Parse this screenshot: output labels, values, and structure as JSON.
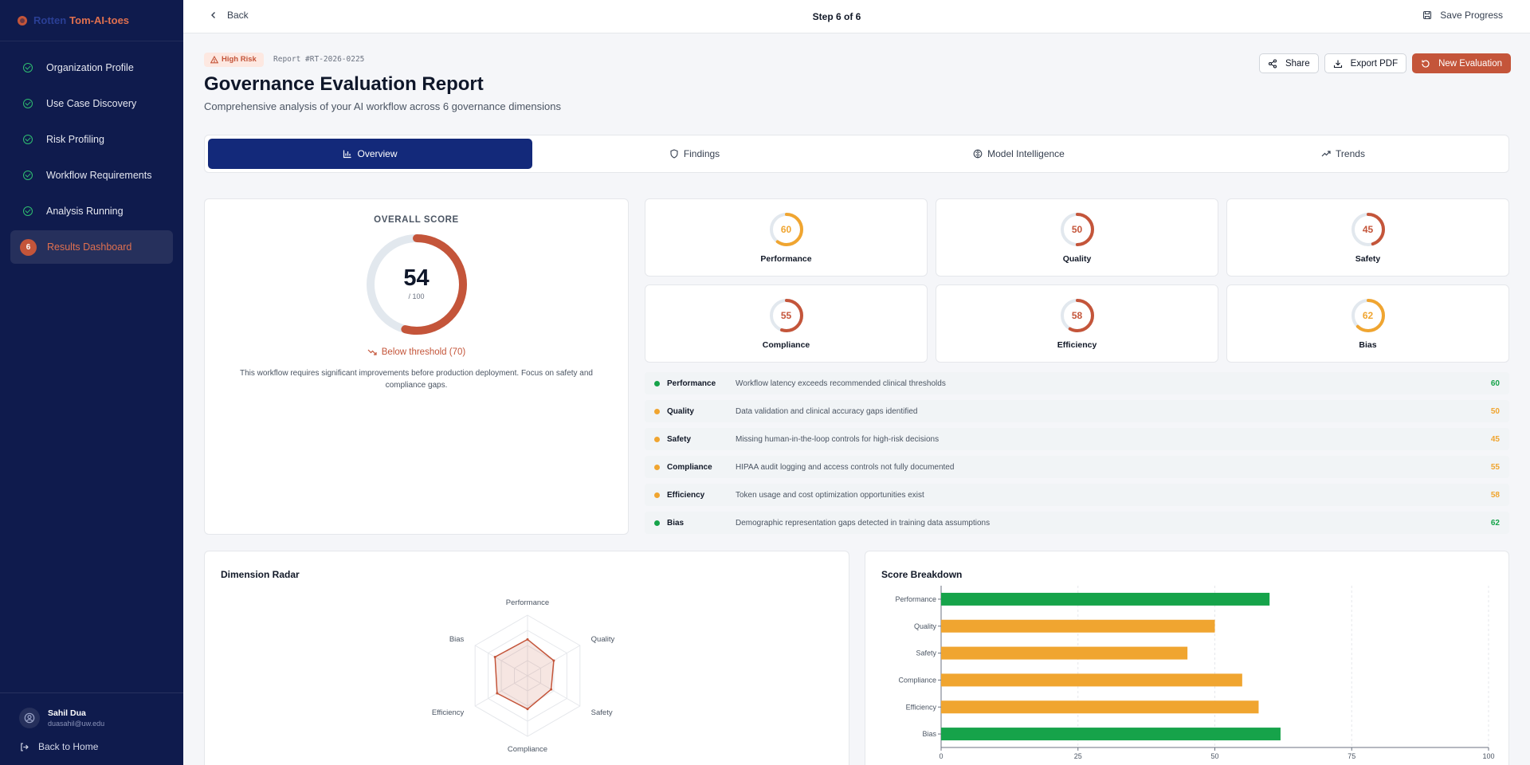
{
  "brand": {
    "part1": "Rotten",
    "part2": "Tom-AI-toes"
  },
  "sidebar": {
    "items": [
      {
        "label": "Organization Profile",
        "state": "done"
      },
      {
        "label": "Use Case Discovery",
        "state": "done"
      },
      {
        "label": "Risk Profiling",
        "state": "done"
      },
      {
        "label": "Workflow Requirements",
        "state": "done"
      },
      {
        "label": "Analysis Running",
        "state": "done"
      },
      {
        "label": "Results Dashboard",
        "state": "active",
        "number": "6"
      }
    ],
    "user": {
      "name": "Sahil Dua",
      "email": "duasahil@uw.edu"
    },
    "back_home": "Back to Home"
  },
  "topbar": {
    "back": "Back",
    "step": "Step 6 of 6",
    "save": "Save Progress"
  },
  "header": {
    "badge": "High Risk",
    "report_id": "Report #RT-2026-0225",
    "title": "Governance Evaluation Report",
    "subtitle": "Comprehensive analysis of your AI workflow across 6 governance dimensions",
    "share": "Share",
    "export": "Export PDF",
    "new_eval": "New Evaluation"
  },
  "tabs": [
    {
      "label": "Overview",
      "icon": "bar-chart-icon"
    },
    {
      "label": "Findings",
      "icon": "shield-icon"
    },
    {
      "label": "Model Intelligence",
      "icon": "brain-icon"
    },
    {
      "label": "Trends",
      "icon": "trend-up-icon"
    }
  ],
  "overall": {
    "label": "OVERALL SCORE",
    "score": 54,
    "score_text": "54",
    "max_text": "/ 100",
    "threshold": "Below threshold (70)",
    "note": "This workflow requires significant improvements before production deployment. Focus on safety and compliance gaps."
  },
  "colors": {
    "green": "#16a34a",
    "amber": "#f0a530",
    "red": "#c4553a",
    "navy": "#0f1b4d"
  },
  "metrics": [
    {
      "name": "Performance",
      "score": 60,
      "score_text": "60",
      "ring_color": "#f0a530"
    },
    {
      "name": "Quality",
      "score": 50,
      "score_text": "50",
      "ring_color": "#c4553a"
    },
    {
      "name": "Safety",
      "score": 45,
      "score_text": "45",
      "ring_color": "#c4553a"
    },
    {
      "name": "Compliance",
      "score": 55,
      "score_text": "55",
      "ring_color": "#c4553a"
    },
    {
      "name": "Efficiency",
      "score": 58,
      "score_text": "58",
      "ring_color": "#c4553a"
    },
    {
      "name": "Bias",
      "score": 62,
      "score_text": "62",
      "ring_color": "#f0a530"
    }
  ],
  "findings": [
    {
      "name": "Performance",
      "desc": "Workflow latency exceeds recommended clinical thresholds",
      "score": "60",
      "color": "#16a34a"
    },
    {
      "name": "Quality",
      "desc": "Data validation and clinical accuracy gaps identified",
      "score": "50",
      "color": "#f0a530"
    },
    {
      "name": "Safety",
      "desc": "Missing human-in-the-loop controls for high-risk decisions",
      "score": "45",
      "color": "#f0a530"
    },
    {
      "name": "Compliance",
      "desc": "HIPAA audit logging and access controls not fully documented",
      "score": "55",
      "color": "#f0a530"
    },
    {
      "name": "Efficiency",
      "desc": "Token usage and cost optimization opportunities exist",
      "score": "58",
      "color": "#f0a530"
    },
    {
      "name": "Bias",
      "desc": "Demographic representation gaps detected in training data assumptions",
      "score": "62",
      "color": "#16a34a"
    }
  ],
  "radar_title": "Dimension Radar",
  "bar_title": "Score Breakdown",
  "chart_data": [
    {
      "type": "radar",
      "title": "Dimension Radar",
      "categories": [
        "Performance",
        "Quality",
        "Safety",
        "Compliance",
        "Efficiency",
        "Bias"
      ],
      "values": [
        60,
        50,
        45,
        55,
        58,
        62
      ],
      "range": [
        0,
        100
      ]
    },
    {
      "type": "bar",
      "orientation": "horizontal",
      "title": "Score Breakdown",
      "categories": [
        "Performance",
        "Quality",
        "Safety",
        "Compliance",
        "Efficiency",
        "Bias"
      ],
      "values": [
        60,
        50,
        45,
        55,
        58,
        62
      ],
      "bar_colors": [
        "#16a34a",
        "#f0a530",
        "#f0a530",
        "#f0a530",
        "#f0a530",
        "#16a34a"
      ],
      "xlim": [
        0,
        100
      ],
      "xticks": [
        0,
        25,
        50,
        75,
        100
      ],
      "grid": true
    }
  ]
}
